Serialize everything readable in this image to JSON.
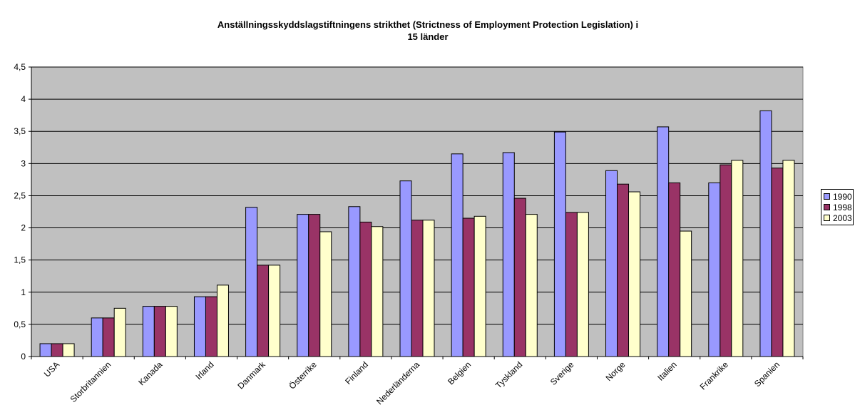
{
  "chart_data": {
    "type": "bar",
    "title": "Anställningsskyddslagstiftningens strikthet (Strictness of Employment Protection Legislation) i 15 länder",
    "categories": [
      "USA",
      "Storbritannien",
      "Kanada",
      "Irland",
      "Danmark",
      "Österrike",
      "Finland",
      "Nederländerna",
      "Belgien",
      "Tyskland",
      "Sverige",
      "Norge",
      "Italien",
      "Frankrike",
      "Spanien"
    ],
    "series": [
      {
        "name": "1990",
        "color": "#9999ff",
        "values": [
          0.2,
          0.6,
          0.78,
          0.93,
          2.32,
          2.21,
          2.33,
          2.73,
          3.15,
          3.17,
          3.49,
          2.89,
          3.57,
          2.7,
          3.82
        ]
      },
      {
        "name": "1998",
        "color": "#993366",
        "values": [
          0.2,
          0.6,
          0.78,
          0.93,
          1.42,
          2.21,
          2.09,
          2.12,
          2.15,
          2.46,
          2.24,
          2.68,
          2.7,
          2.98,
          2.93
        ]
      },
      {
        "name": "2003",
        "color": "#ffffcc",
        "values": [
          0.2,
          0.75,
          0.78,
          1.11,
          1.42,
          1.94,
          2.02,
          2.12,
          2.18,
          2.21,
          2.24,
          2.56,
          1.95,
          3.05,
          3.05
        ]
      }
    ],
    "yticks": [
      "0",
      "0,5",
      "1",
      "1,5",
      "2",
      "2,5",
      "3",
      "3,5",
      "4",
      "4,5"
    ],
    "ylim": [
      0,
      4.5
    ],
    "plot_background": "#c0c0c0",
    "grid": true,
    "legend_position": "right"
  }
}
